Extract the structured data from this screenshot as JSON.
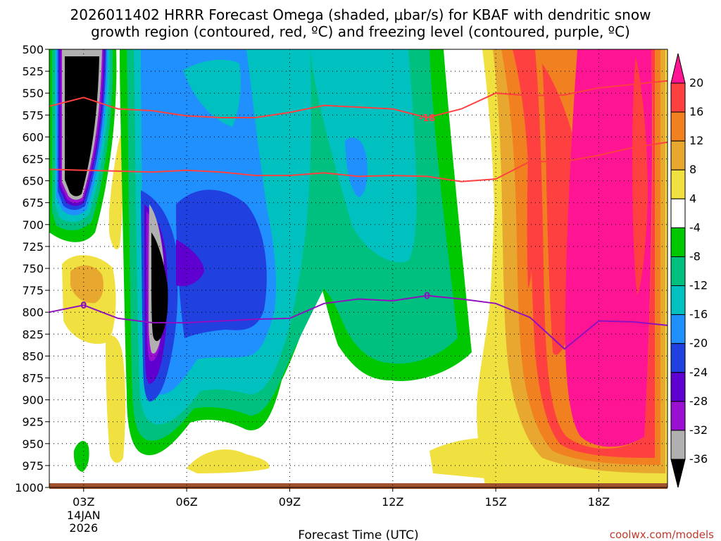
{
  "title": {
    "line1": "2026011402 HRRR Forecast Omega (shaded, μbar/s) for KBAF with dendritic snow",
    "line2": "growth region (contoured, red, ºC) and freezing level (contoured, purple, ºC)"
  },
  "credit": "coolwx.com/models",
  "chart_data": {
    "type": "heatmap",
    "title": "2026011402 HRRR Forecast Omega (shaded, μbar/s) for KBAF with dendritic snow growth region (contoured, red, ºC) and freezing level (contoured, purple, ºC)",
    "xlabel": "Forecast Time (UTC)",
    "ylabel": "",
    "x_range_hours": [
      2,
      20
    ],
    "y_range_hpa": [
      1000,
      500
    ],
    "y_ticks": [
      500,
      525,
      550,
      575,
      600,
      625,
      650,
      675,
      700,
      725,
      750,
      775,
      800,
      825,
      850,
      875,
      900,
      925,
      950,
      975,
      1000
    ],
    "x_ticks": [
      {
        "hour": 3,
        "label": "03Z",
        "sub1": "14JAN",
        "sub2": "2026"
      },
      {
        "hour": 6,
        "label": "06Z"
      },
      {
        "hour": 9,
        "label": "09Z"
      },
      {
        "hour": 12,
        "label": "12Z"
      },
      {
        "hour": 15,
        "label": "15Z"
      },
      {
        "hour": 18,
        "label": "18Z"
      }
    ],
    "colorbar": {
      "labels": [
        "20",
        "16",
        "12",
        "8",
        "4",
        "-4",
        "-8",
        "-12",
        "-16",
        "-20",
        "-24",
        "-28",
        "-32",
        "-36"
      ],
      "colors": [
        "#ff1493",
        "#ff4040",
        "#f08020",
        "#e8a830",
        "#f0e040",
        "#ffffff",
        "#00c800",
        "#00c080",
        "#00c0c0",
        "#2090ff",
        "#2040e0",
        "#6000d0",
        "#9a10d0",
        "#b0b0b0",
        "#000000"
      ]
    },
    "ground": {
      "color": "#a0522d"
    },
    "contours": [
      {
        "name": "-18",
        "label": "-18",
        "color": "#ff4040",
        "points": [
          [
            2.0,
            565
          ],
          [
            3.0,
            555
          ],
          [
            4.0,
            568
          ],
          [
            5.0,
            570
          ],
          [
            6.0,
            576
          ],
          [
            7.0,
            578
          ],
          [
            8.0,
            578
          ],
          [
            9.0,
            572
          ],
          [
            10.0,
            564
          ],
          [
            11.0,
            566
          ],
          [
            12.0,
            568
          ],
          [
            13.0,
            578
          ],
          [
            14.0,
            568
          ],
          [
            15.0,
            550
          ],
          [
            16.0,
            553
          ],
          [
            17.0,
            552
          ],
          [
            18.0,
            544
          ],
          [
            19.0,
            540
          ],
          [
            20.0,
            536
          ]
        ]
      },
      {
        "name": "-12",
        "label": "",
        "color": "#ff4040",
        "points": [
          [
            2.0,
            637
          ],
          [
            3.0,
            638
          ],
          [
            4.0,
            639
          ],
          [
            5.0,
            640
          ],
          [
            6.0,
            638
          ],
          [
            7.0,
            640
          ],
          [
            8.0,
            644
          ],
          [
            9.0,
            644
          ],
          [
            10.0,
            641
          ],
          [
            11.0,
            645
          ],
          [
            12.0,
            644
          ],
          [
            13.0,
            645
          ],
          [
            14.0,
            651
          ],
          [
            15.0,
            648
          ],
          [
            16.0,
            628
          ],
          [
            17.0,
            628
          ],
          [
            18.0,
            621
          ],
          [
            19.0,
            612
          ],
          [
            20.0,
            606
          ]
        ]
      },
      {
        "name": "0",
        "label": "0",
        "color": "#9010c0",
        "points": [
          [
            2.0,
            800
          ],
          [
            3.0,
            792
          ],
          [
            4.0,
            807
          ],
          [
            5.0,
            812
          ],
          [
            6.0,
            812
          ],
          [
            7.0,
            810
          ],
          [
            8.0,
            808
          ],
          [
            9.0,
            807
          ],
          [
            10.0,
            790
          ],
          [
            11.0,
            785
          ],
          [
            12.0,
            787
          ],
          [
            13.0,
            781
          ],
          [
            14.0,
            785
          ],
          [
            15.0,
            790
          ],
          [
            16.0,
            806
          ],
          [
            17.0,
            842
          ],
          [
            18.0,
            810
          ],
          [
            19.0,
            811
          ],
          [
            20.0,
            815
          ]
        ]
      }
    ]
  }
}
